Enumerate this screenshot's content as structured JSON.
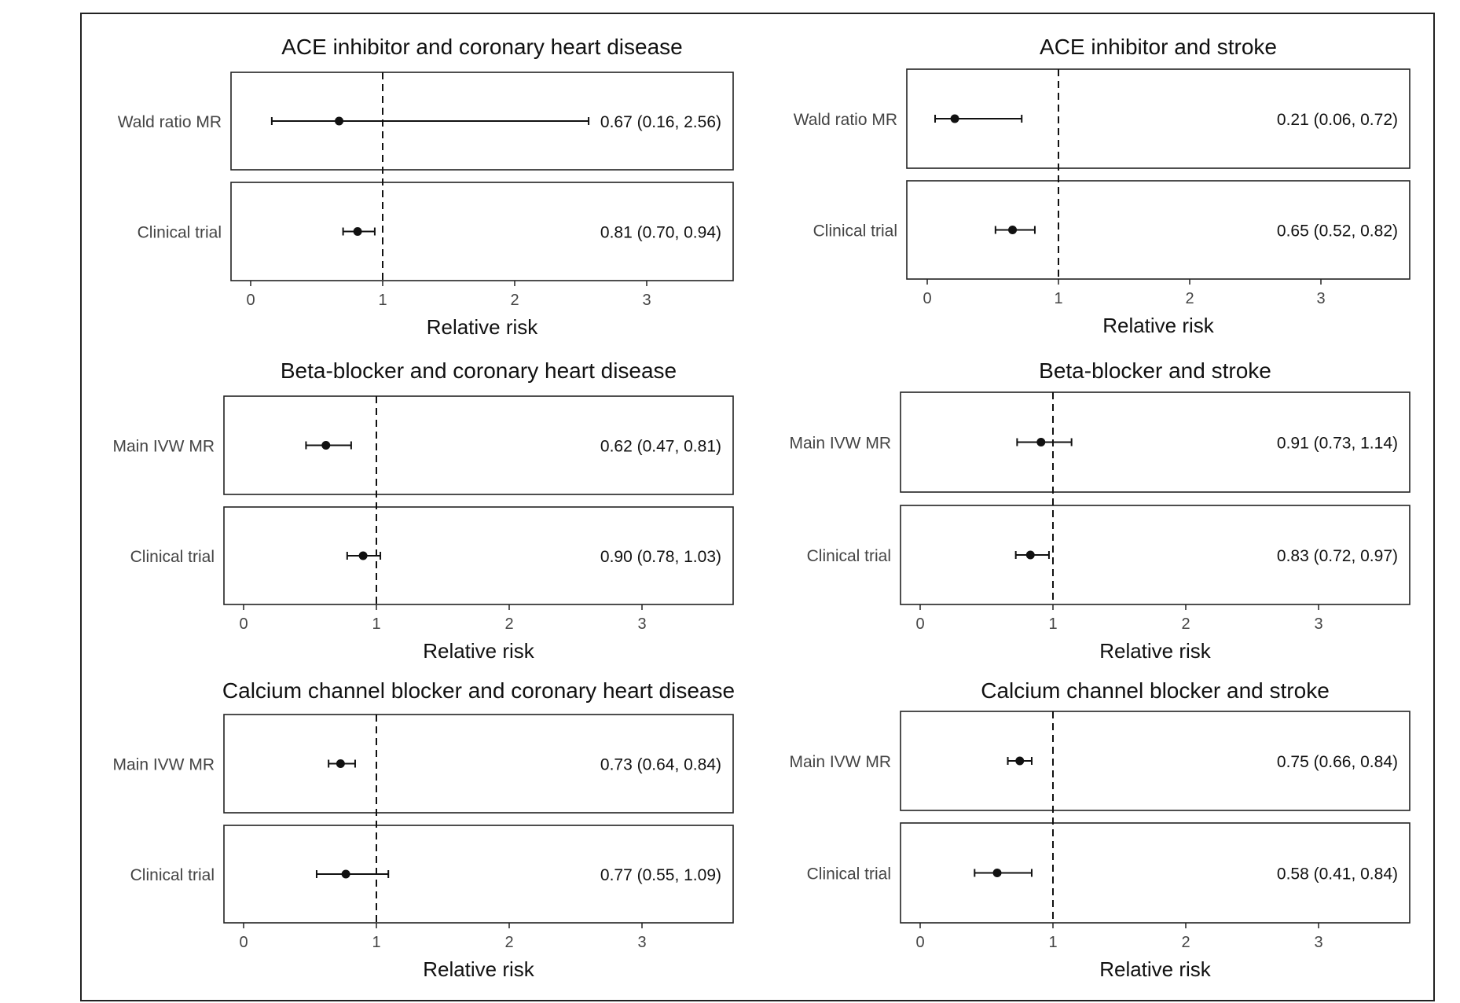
{
  "chart_data": [
    {
      "type": "forest",
      "title": "ACE inhibitor and coronary heart disease",
      "xlabel": "Relative risk",
      "xlim": [
        -0.15,
        3.65
      ],
      "xticks": [
        0,
        1,
        2,
        3
      ],
      "reference_line": 1,
      "rows": [
        {
          "label": "Wald ratio MR",
          "estimate": 0.67,
          "lower": 0.16,
          "upper": 2.56,
          "text": "0.67 (0.16, 2.56)"
        },
        {
          "label": "Clinical trial",
          "estimate": 0.81,
          "lower": 0.7,
          "upper": 0.94,
          "text": "0.81 (0.70, 0.94)"
        }
      ]
    },
    {
      "type": "forest",
      "title": "ACE inhibitor and stroke",
      "xlabel": "Relative risk",
      "xlim": [
        -0.15,
        3.65
      ],
      "xticks": [
        0,
        1,
        2,
        3
      ],
      "reference_line": 1,
      "rows": [
        {
          "label": "Wald ratio MR",
          "estimate": 0.21,
          "lower": 0.06,
          "upper": 0.72,
          "text": "0.21 (0.06, 0.72)"
        },
        {
          "label": "Clinical trial",
          "estimate": 0.65,
          "lower": 0.52,
          "upper": 0.82,
          "text": "0.65 (0.52, 0.82)"
        }
      ]
    },
    {
      "type": "forest",
      "title": "Beta-blocker and coronary heart disease",
      "xlabel": "Relative risk",
      "xlim": [
        -0.15,
        3.65
      ],
      "xticks": [
        0,
        1,
        2,
        3
      ],
      "reference_line": 1,
      "rows": [
        {
          "label": "Main IVW MR",
          "estimate": 0.62,
          "lower": 0.47,
          "upper": 0.81,
          "text": "0.62 (0.47, 0.81)"
        },
        {
          "label": "Clinical trial",
          "estimate": 0.9,
          "lower": 0.78,
          "upper": 1.03,
          "text": "0.90 (0.78, 1.03)"
        }
      ]
    },
    {
      "type": "forest",
      "title": "Beta-blocker and stroke",
      "xlabel": "Relative risk",
      "xlim": [
        -0.15,
        3.65
      ],
      "xticks": [
        0,
        1,
        2,
        3
      ],
      "reference_line": 1,
      "rows": [
        {
          "label": "Main IVW MR",
          "estimate": 0.91,
          "lower": 0.73,
          "upper": 1.14,
          "text": "0.91 (0.73, 1.14)"
        },
        {
          "label": "Clinical trial",
          "estimate": 0.83,
          "lower": 0.72,
          "upper": 0.97,
          "text": "0.83 (0.72, 0.97)"
        }
      ]
    },
    {
      "type": "forest",
      "title": "Calcium channel blocker and coronary heart disease",
      "xlabel": "Relative risk",
      "xlim": [
        -0.15,
        3.65
      ],
      "xticks": [
        0,
        1,
        2,
        3
      ],
      "reference_line": 1,
      "rows": [
        {
          "label": "Main IVW MR",
          "estimate": 0.73,
          "lower": 0.64,
          "upper": 0.84,
          "text": "0.73 (0.64, 0.84)"
        },
        {
          "label": "Clinical trial",
          "estimate": 0.77,
          "lower": 0.55,
          "upper": 1.09,
          "text": "0.77 (0.55, 1.09)"
        }
      ]
    },
    {
      "type": "forest",
      "title": "Calcium channel blocker and stroke",
      "xlabel": "Relative risk",
      "xlim": [
        -0.15,
        3.65
      ],
      "xticks": [
        0,
        1,
        2,
        3
      ],
      "reference_line": 1,
      "rows": [
        {
          "label": "Main IVW MR",
          "estimate": 0.75,
          "lower": 0.66,
          "upper": 0.84,
          "text": "0.75 (0.66, 0.84)"
        },
        {
          "label": "Clinical trial",
          "estimate": 0.58,
          "lower": 0.41,
          "upper": 0.84,
          "text": "0.58 (0.41, 0.84)"
        }
      ]
    }
  ],
  "colors": {
    "ink": "#111111",
    "label": "#444444",
    "frame": "#222222"
  }
}
